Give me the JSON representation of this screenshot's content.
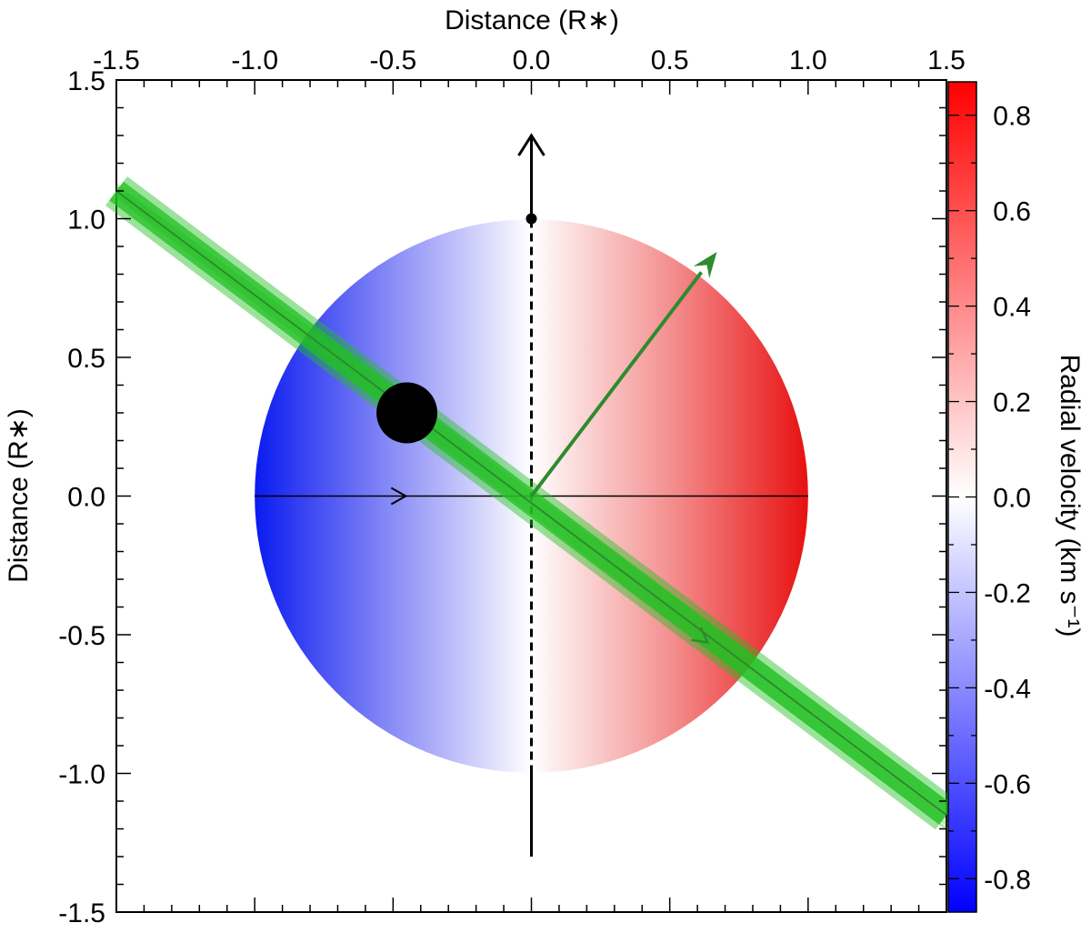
{
  "chart_data": {
    "type": "scatter",
    "title": "",
    "xlabel": "Distance (R∗)",
    "ylabel": "Distance (R∗)",
    "colorbar_label": "Radial velocity (km s⁻¹)",
    "xlim": [
      -1.5,
      1.5
    ],
    "ylim": [
      -1.5,
      1.5
    ],
    "colorbar_range": [
      -0.87,
      0.87
    ],
    "x_ticks": [
      "-1.5",
      "-1.0",
      "-0.5",
      "0.0",
      "0.5",
      "1.0",
      "1.5"
    ],
    "x_tick_values": [
      -1.5,
      -1.0,
      -0.5,
      0.0,
      0.5,
      1.0,
      1.5
    ],
    "y_ticks": [
      "-1.5",
      "-1.0",
      "-0.5",
      "0.0",
      "0.5",
      "1.0",
      "1.5"
    ],
    "y_tick_values": [
      -1.5,
      -1.0,
      -0.5,
      0.0,
      0.5,
      1.0,
      1.5
    ],
    "colorbar_ticks": [
      "-0.8",
      "-0.6",
      "-0.4",
      "-0.2",
      "0.0",
      "0.2",
      "0.4",
      "0.6",
      "0.8"
    ],
    "colorbar_tick_values": [
      -0.8,
      -0.6,
      -0.4,
      -0.2,
      0.0,
      0.2,
      0.4,
      0.6,
      0.8
    ],
    "grid": false,
    "star": {
      "center": [
        0,
        0
      ],
      "radius": 1.0,
      "colormap": "blue-white-red"
    },
    "planet": {
      "x": -0.45,
      "y": 0.3,
      "radius": 0.11,
      "color": "#000000"
    },
    "stellar_spin_axis": {
      "from": [
        0,
        -1.3
      ],
      "to": [
        0,
        1.3
      ],
      "marker_at": [
        0,
        1.0
      ],
      "color": "#000000"
    },
    "stellar_equator": {
      "from": [
        -1.0,
        0.0
      ],
      "to": [
        1.0,
        0.0
      ],
      "arrow_at": [
        -0.5,
        0.0
      ],
      "color": "#000000"
    },
    "orbit_normal": {
      "from": [
        0.0,
        0.0
      ],
      "to": [
        0.67,
        0.88
      ],
      "color": "#2e8b2e"
    },
    "transit_chord": {
      "from": [
        -1.5,
        1.1
      ],
      "to": [
        1.5,
        -1.15
      ],
      "arrow_at": [
        0.6,
        -0.5
      ],
      "band_color": "#22c022",
      "line_color": "#2e8b2e"
    },
    "colors": {
      "blue": "#0000ff",
      "white": "#ffffff",
      "red": "#ff0000",
      "green": "#2e8b2e"
    }
  }
}
